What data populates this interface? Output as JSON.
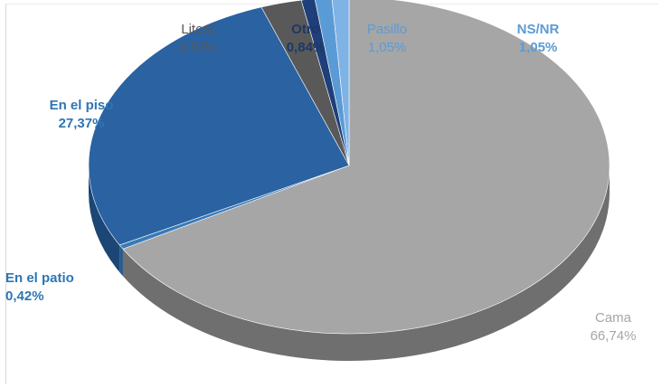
{
  "chart_data": {
    "type": "pie",
    "style": "3d-exploded-none",
    "title": "",
    "slices": [
      {
        "label": "Cama",
        "value": 66.74,
        "value_text": "66,74%",
        "color": "#a6a6a6",
        "side_color": "#6f6f6f",
        "label_color": "#a6a6a6"
      },
      {
        "label": "En el patio",
        "value": 0.42,
        "value_text": "0,42%",
        "color": "#3a7ab8",
        "side_color": "#26598a",
        "label_color": "#2e75b6"
      },
      {
        "label": "En el piso",
        "value": 27.37,
        "value_text": "27,37%",
        "color": "#2a62a2",
        "side_color": "#1b4675",
        "label_color": "#2e75b6"
      },
      {
        "label": "Litera",
        "value": 2.53,
        "value_text": "2,53%",
        "color": "#595959",
        "side_color": "#3c3c3c",
        "label_color": "#595959"
      },
      {
        "label": "Otro",
        "value": 0.84,
        "value_text": "0,84%",
        "color": "#1f3f7a",
        "side_color": "#162d57",
        "label_color": "#1f3864"
      },
      {
        "label": "Pasillo",
        "value": 1.05,
        "value_text": "1,05%",
        "color": "#5b9bd5",
        "side_color": "#3f79ad",
        "label_color": "#5b9bd5"
      },
      {
        "label": "NS/NR",
        "value": 1.05,
        "value_text": "1,05%",
        "color": "#7fb3e6",
        "side_color": "#5a8fc2",
        "label_color": "#5b9bd5"
      }
    ]
  }
}
